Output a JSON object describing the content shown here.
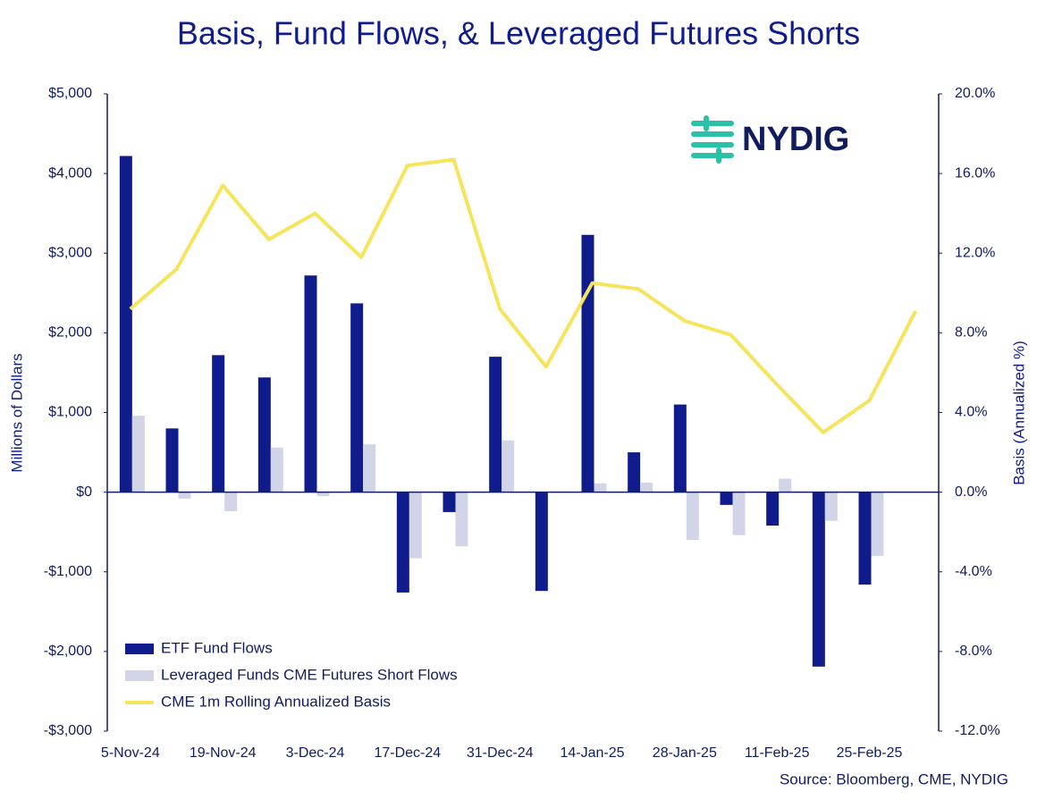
{
  "chart_data": {
    "type": "bar",
    "title": "Basis, Fund Flows, & Leveraged Futures Shorts",
    "logo": "NYDIG",
    "source": "Source: Bloomberg, CME, NYDIG",
    "y_label": "Millions of Dollars",
    "y2_label": "Basis (Annualized %)",
    "categories": [
      "5-Nov-24",
      null,
      "19-Nov-24",
      null,
      "3-Dec-24",
      null,
      "17-Dec-24",
      null,
      "31-Dec-24",
      null,
      "14-Jan-25",
      null,
      "28-Jan-25",
      null,
      "11-Feb-25",
      null,
      "25-Feb-25",
      null
    ],
    "series": [
      {
        "name": "ETF Fund Flows",
        "type": "bar",
        "color": "#111c8c",
        "values": [
          4220,
          800,
          1720,
          1440,
          2720,
          2370,
          -1260,
          -250,
          1700,
          -1240,
          3230,
          500,
          1100,
          -160,
          -420,
          -2190,
          -1160,
          null
        ]
      },
      {
        "name": "Leveraged Funds CME Futures Short Flows",
        "type": "bar",
        "color": "#d2d5e8",
        "values": [
          960,
          -80,
          -240,
          560,
          -50,
          600,
          -830,
          -680,
          650,
          null,
          110,
          120,
          -600,
          -540,
          170,
          -360,
          -800,
          null
        ]
      },
      {
        "name": "CME 1m Rolling Annualized Basis",
        "type": "line",
        "axis": "y2",
        "color": "#f6e45c",
        "values": [
          9.2,
          11.2,
          15.4,
          12.7,
          14.0,
          11.8,
          16.4,
          16.7,
          9.2,
          6.3,
          10.5,
          10.2,
          8.6,
          7.9,
          5.4,
          3.0,
          4.6,
          9.1
        ]
      }
    ],
    "ylim": [
      -3000,
      5000
    ],
    "yticks": [
      {
        "value": -3000,
        "label": "-$3,000"
      },
      {
        "value": -2000,
        "label": "-$2,000"
      },
      {
        "value": -1000,
        "label": "-$1,000"
      },
      {
        "value": 0,
        "label": "$0"
      },
      {
        "value": 1000,
        "label": "$1,000"
      },
      {
        "value": 2000,
        "label": "$2,000"
      },
      {
        "value": 3000,
        "label": "$3,000"
      },
      {
        "value": 4000,
        "label": "$4,000"
      },
      {
        "value": 5000,
        "label": "$5,000"
      }
    ],
    "y2lim": [
      -12,
      20
    ],
    "y2ticks": [
      {
        "value": -12,
        "label": "-12.0%"
      },
      {
        "value": -8,
        "label": "-8.0%"
      },
      {
        "value": -4,
        "label": "-4.0%"
      },
      {
        "value": 0,
        "label": "0.0%"
      },
      {
        "value": 4,
        "label": "4.0%"
      },
      {
        "value": 8,
        "label": "8.0%"
      },
      {
        "value": 12,
        "label": "12.0%"
      },
      {
        "value": 16,
        "label": "16.0%"
      },
      {
        "value": 20,
        "label": "20.0%"
      }
    ],
    "grid": false,
    "legend": "lower left"
  }
}
